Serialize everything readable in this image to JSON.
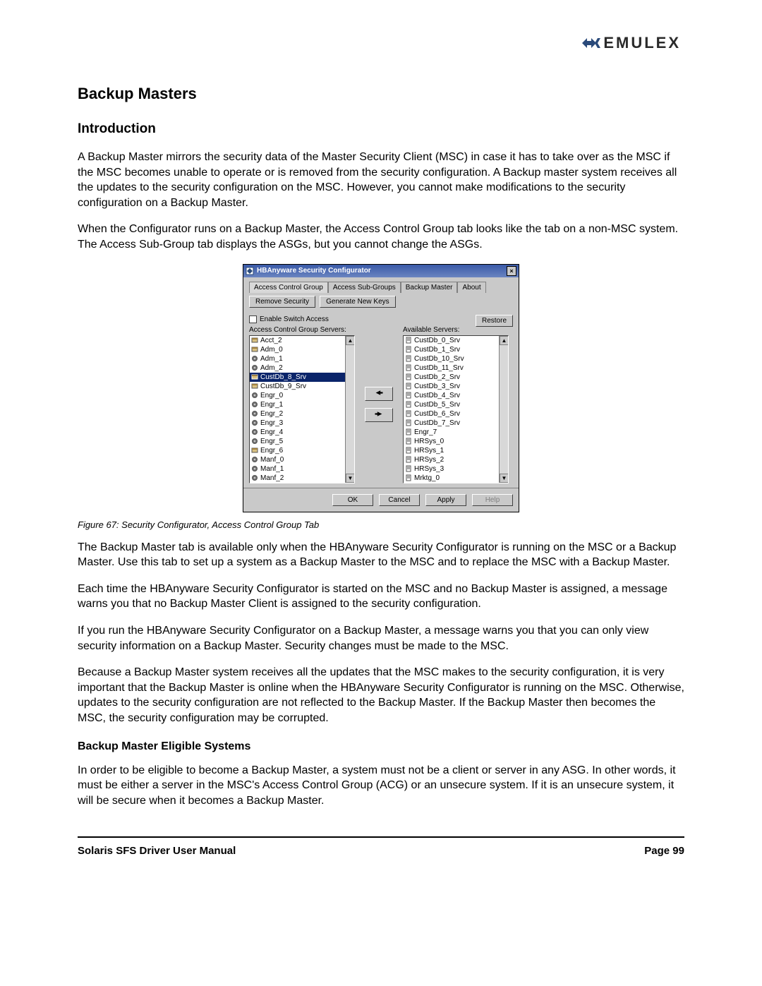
{
  "brand": {
    "name": "EMULEX"
  },
  "headings": {
    "h1": "Backup Masters",
    "h2": "Introduction",
    "h3": "Backup Master Eligible Systems"
  },
  "paragraphs": {
    "p1": "A Backup Master mirrors the security data of the Master Security Client (MSC) in case it has to take over as the MSC if the MSC becomes unable to operate or is removed from the security configuration. A Backup master system receives all the updates to the security configuration on the MSC. However, you cannot make modifications to the security configuration on a Backup Master.",
    "p2": "When the Configurator runs on a Backup Master, the Access Control Group tab looks like the tab on a non-MSC system. The Access Sub-Group tab displays the ASGs, but you cannot change the ASGs.",
    "p3": "The Backup Master tab is available only when the HBAnyware Security Configurator is running on the MSC or a Backup Master. Use this tab to set up a system as a Backup Master to the MSC and to replace the MSC with a Backup Master.",
    "p4": "Each time the HBAnyware Security Configurator is started on the MSC and no Backup Master is assigned, a message warns you that no Backup Master Client is assigned to the security configuration.",
    "p5": "If you run the HBAnyware Security Configurator on a Backup Master, a message warns you that you can only view security information on a Backup Master. Security changes must be made to the MSC.",
    "p6": "Because a Backup Master system receives all the updates that the MSC makes to the security configuration, it is very important that the Backup Master is online when the HBAnyware Security Configurator is running on the MSC. Otherwise, updates to the security configuration are not reflected to the Backup Master. If the Backup Master then becomes the MSC, the security configuration may be corrupted.",
    "p7": "In order to be eligible to become a Backup Master, a system must not be a client or server in any ASG. In other words, it must be either a server in the MSC's Access Control Group (ACG) or an unsecure system. If it is an unsecure system, it will be secure when it becomes a Backup Master."
  },
  "caption": "Figure 67: Security Configurator, Access Control Group Tab",
  "footer": {
    "left": "Solaris SFS Driver User Manual",
    "right": "Page 99"
  },
  "dialog": {
    "title": "HBAnyware Security Configurator",
    "tabs": [
      "Access Control Group",
      "Access Sub-Groups",
      "Backup Master",
      "About"
    ],
    "active_tab": 0,
    "buttons": {
      "remove_security": "Remove Security",
      "generate_keys": "Generate New Keys",
      "restore": "Restore",
      "ok": "OK",
      "cancel": "Cancel",
      "apply": "Apply",
      "help": "Help"
    },
    "checkbox_label": "Enable Switch Access",
    "left_label": "Access Control Group Servers:",
    "right_label": "Available Servers:",
    "left_list": [
      {
        "label": "Acct_2",
        "icon": "server",
        "sel": false
      },
      {
        "label": "Adm_0",
        "icon": "server",
        "sel": false
      },
      {
        "label": "Adm_1",
        "icon": "gear",
        "sel": false
      },
      {
        "label": "Adm_2",
        "icon": "gear",
        "sel": false
      },
      {
        "label": "CustDb_8_Srv",
        "icon": "server",
        "sel": true
      },
      {
        "label": "CustDb_9_Srv",
        "icon": "server",
        "sel": false
      },
      {
        "label": "Engr_0",
        "icon": "gear",
        "sel": false
      },
      {
        "label": "Engr_1",
        "icon": "gear",
        "sel": false
      },
      {
        "label": "Engr_2",
        "icon": "gear",
        "sel": false
      },
      {
        "label": "Engr_3",
        "icon": "gear",
        "sel": false
      },
      {
        "label": "Engr_4",
        "icon": "gear",
        "sel": false
      },
      {
        "label": "Engr_5",
        "icon": "gear",
        "sel": false
      },
      {
        "label": "Engr_6",
        "icon": "server",
        "sel": false
      },
      {
        "label": "Manf_0",
        "icon": "gear",
        "sel": false
      },
      {
        "label": "Manf_1",
        "icon": "gear",
        "sel": false
      },
      {
        "label": "Manf_2",
        "icon": "gear",
        "sel": false
      }
    ],
    "right_list": [
      {
        "label": "CustDb_0_Srv",
        "icon": "doc"
      },
      {
        "label": "CustDb_1_Srv",
        "icon": "doc"
      },
      {
        "label": "CustDb_10_Srv",
        "icon": "doc"
      },
      {
        "label": "CustDb_11_Srv",
        "icon": "doc"
      },
      {
        "label": "CustDb_2_Srv",
        "icon": "doc"
      },
      {
        "label": "CustDb_3_Srv",
        "icon": "doc"
      },
      {
        "label": "CustDb_4_Srv",
        "icon": "doc"
      },
      {
        "label": "CustDb_5_Srv",
        "icon": "doc"
      },
      {
        "label": "CustDb_6_Srv",
        "icon": "doc"
      },
      {
        "label": "CustDb_7_Srv",
        "icon": "doc"
      },
      {
        "label": "Engr_7",
        "icon": "doc"
      },
      {
        "label": "HRSys_0",
        "icon": "doc"
      },
      {
        "label": "HRSys_1",
        "icon": "doc"
      },
      {
        "label": "HRSys_2",
        "icon": "doc"
      },
      {
        "label": "HRSys_3",
        "icon": "doc"
      },
      {
        "label": "Mrktg_0",
        "icon": "doc"
      }
    ],
    "colors": {
      "dialog_bg": "#c9c9c9",
      "titlebar_start": "#3a5aa8",
      "titlebar_end": "#6a84c0",
      "selection_bg": "#0a246a",
      "selection_fg": "#ffffff"
    }
  }
}
